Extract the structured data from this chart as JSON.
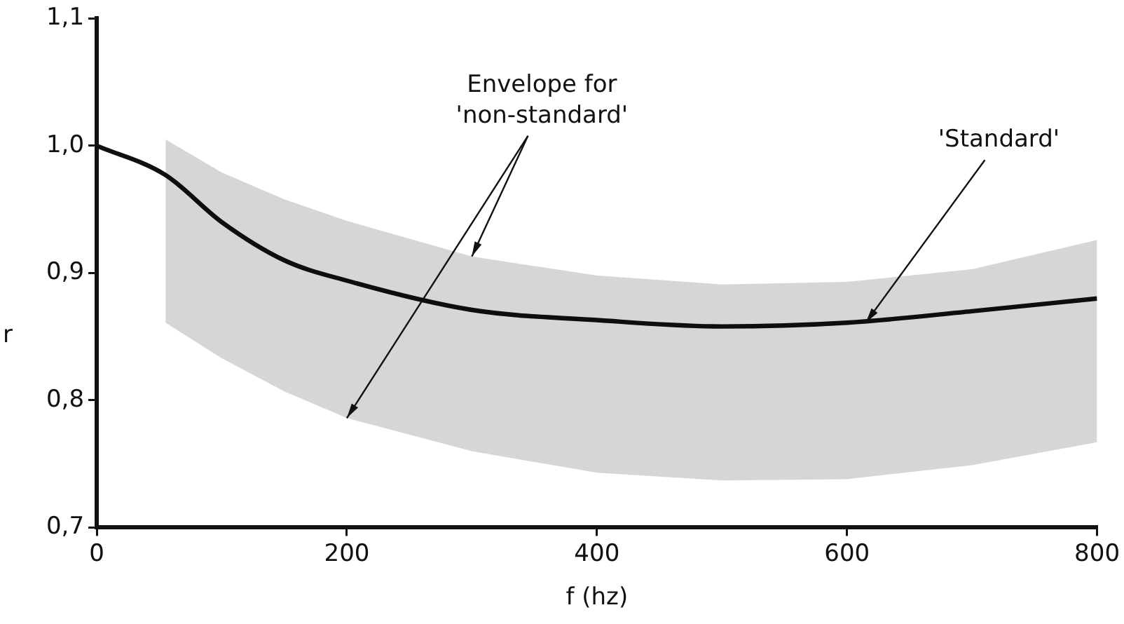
{
  "chart_data": {
    "type": "line",
    "xlabel": "f (hz)",
    "ylabel": "r",
    "x": [
      0,
      55,
      100,
      150,
      200,
      300,
      400,
      500,
      600,
      700,
      800
    ],
    "series": [
      {
        "type": "line",
        "color": "#111111",
        "values": [
          1.0,
          0.977,
          0.94,
          0.91,
          0.894,
          0.871,
          0.863,
          0.858,
          0.861,
          0.87,
          0.88
        ],
        "lower": [
          null,
          0.861,
          0.833,
          0.807,
          0.786,
          0.76,
          0.743,
          0.737,
          0.738,
          0.749,
          0.767
        ],
        "upper": [
          null,
          1.005,
          0.979,
          0.958,
          0.941,
          0.913,
          0.898,
          0.891,
          0.893,
          0.903,
          0.926
        ]
      }
    ],
    "xlim": [
      0,
      800
    ],
    "xticks": [
      0,
      200,
      400,
      600,
      800
    ],
    "ylim": [
      0.7,
      1.1
    ],
    "yticks": [
      {
        "value": 0.7,
        "label": "0,7"
      },
      {
        "value": 0.8,
        "label": "0,8"
      },
      {
        "value": 0.9,
        "label": "0,9"
      },
      {
        "value": 1.0,
        "label": "1,0"
      },
      {
        "value": 1.1,
        "label": "1,1"
      }
    ],
    "annotations": [
      {
        "text": "Envelope for\n'non-standard'",
        "x": 300,
        "y": 0.913
      },
      {
        "text": "'Standard'",
        "x": 615,
        "y": 0.861
      }
    ],
    "grid": false,
    "legend": false,
    "marker": "none",
    "line_style": "solid"
  }
}
